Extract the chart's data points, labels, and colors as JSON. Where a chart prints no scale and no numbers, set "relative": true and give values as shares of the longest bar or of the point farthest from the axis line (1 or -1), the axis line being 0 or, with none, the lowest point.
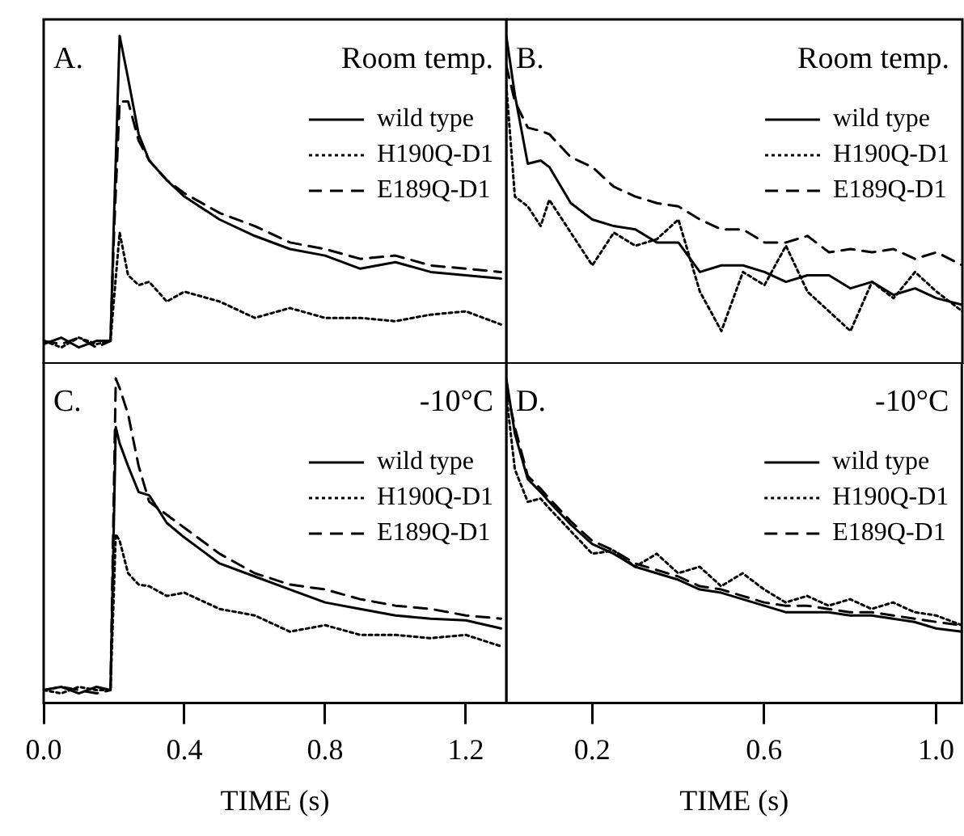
{
  "chart_data": [
    {
      "type": "line",
      "title": "Room temp.",
      "annotations": [
        "A."
      ],
      "relative": true,
      "legend": "top right",
      "marker": "none",
      "tick_labels": false,
      "xlim": [
        0,
        1.315
      ],
      "x": [
        0,
        0.05,
        0.1,
        0.15,
        0.19,
        0.2,
        0.216,
        0.24,
        0.27,
        0.3,
        0.35,
        0.4,
        0.5,
        0.6,
        0.7,
        0.8,
        0.9,
        1.0,
        1.1,
        1.2,
        1.3
      ],
      "series": [
        {
          "name": "wild type",
          "color": "#000000",
          "line_style": "solid",
          "values": [
            0.06,
            0.08,
            0.05,
            0.07,
            0.07,
            0.45,
            1.0,
            0.87,
            0.7,
            0.62,
            0.56,
            0.51,
            0.44,
            0.39,
            0.35,
            0.33,
            0.29,
            0.31,
            0.28,
            0.27,
            0.26
          ]
        },
        {
          "name": "H190Q-D1",
          "color": "#000000",
          "line_style": "dotted",
          "values": [
            0.07,
            0.05,
            0.08,
            0.06,
            0.07,
            0.2,
            0.4,
            0.27,
            0.24,
            0.25,
            0.19,
            0.22,
            0.19,
            0.14,
            0.17,
            0.14,
            0.14,
            0.13,
            0.15,
            0.16,
            0.12
          ]
        },
        {
          "name": "E189Q-D1",
          "color": "#000000",
          "line_style": "dashed",
          "values": [
            0.07,
            0.06,
            0.08,
            0.05,
            0.07,
            0.4,
            0.8,
            0.8,
            0.68,
            0.62,
            0.56,
            0.52,
            0.46,
            0.42,
            0.37,
            0.35,
            0.32,
            0.33,
            0.3,
            0.29,
            0.28
          ]
        }
      ]
    },
    {
      "type": "line",
      "title": "Room temp.",
      "annotations": [
        "B."
      ],
      "relative": true,
      "legend": "top right",
      "marker": "none",
      "tick_labels": false,
      "xlim": [
        0,
        1.06
      ],
      "x": [
        0,
        0.02,
        0.05,
        0.08,
        0.1,
        0.15,
        0.2,
        0.25,
        0.3,
        0.35,
        0.4,
        0.45,
        0.5,
        0.55,
        0.6,
        0.65,
        0.7,
        0.75,
        0.8,
        0.85,
        0.9,
        0.95,
        1.0,
        1.06
      ],
      "series": [
        {
          "name": "wild type",
          "color": "#000000",
          "line_style": "solid",
          "values": [
            1.0,
            0.82,
            0.61,
            0.62,
            0.6,
            0.49,
            0.44,
            0.42,
            0.41,
            0.37,
            0.37,
            0.28,
            0.3,
            0.3,
            0.28,
            0.25,
            0.27,
            0.27,
            0.23,
            0.25,
            0.21,
            0.23,
            0.2,
            0.18
          ]
        },
        {
          "name": "H190Q-D1",
          "color": "#000000",
          "line_style": "dotted",
          "values": [
            0.85,
            0.51,
            0.48,
            0.42,
            0.5,
            0.4,
            0.3,
            0.4,
            0.36,
            0.38,
            0.44,
            0.22,
            0.1,
            0.28,
            0.24,
            0.36,
            0.22,
            0.16,
            0.1,
            0.25,
            0.2,
            0.28,
            0.22,
            0.16
          ]
        },
        {
          "name": "E189Q-D1",
          "color": "#000000",
          "line_style": "dashed",
          "values": [
            0.91,
            0.8,
            0.72,
            0.71,
            0.7,
            0.63,
            0.6,
            0.54,
            0.51,
            0.49,
            0.48,
            0.44,
            0.41,
            0.41,
            0.37,
            0.37,
            0.39,
            0.34,
            0.35,
            0.34,
            0.35,
            0.32,
            0.34,
            0.3
          ]
        }
      ]
    },
    {
      "type": "line",
      "title": "-10°C",
      "annotations": [
        "C."
      ],
      "xlabel": "TIME (s)",
      "relative": true,
      "legend": "top right",
      "marker": "none",
      "tick_labels": "x",
      "xlim": [
        0,
        1.315
      ],
      "xticks": [
        {
          "value": 0,
          "label": "0.0"
        },
        0.4,
        0.8,
        1.2
      ],
      "x": [
        0,
        0.05,
        0.1,
        0.15,
        0.19,
        0.205,
        0.216,
        0.24,
        0.27,
        0.3,
        0.35,
        0.4,
        0.5,
        0.6,
        0.7,
        0.8,
        0.9,
        1.0,
        1.1,
        1.2,
        1.3
      ],
      "series": [
        {
          "name": "wild type",
          "color": "#000000",
          "line_style": "solid",
          "values": [
            0.04,
            0.05,
            0.03,
            0.05,
            0.04,
            0.85,
            0.8,
            0.73,
            0.65,
            0.64,
            0.555,
            0.51,
            0.43,
            0.39,
            0.35,
            0.31,
            0.29,
            0.27,
            0.26,
            0.255,
            0.23
          ]
        },
        {
          "name": "H190Q-D1",
          "color": "#000000",
          "line_style": "dotted",
          "values": [
            0.04,
            0.03,
            0.05,
            0.04,
            0.04,
            0.52,
            0.5,
            0.4,
            0.365,
            0.36,
            0.33,
            0.34,
            0.29,
            0.27,
            0.22,
            0.24,
            0.21,
            0.21,
            0.2,
            0.21,
            0.175
          ]
        },
        {
          "name": "E189Q-D1",
          "color": "#000000",
          "line_style": "dashed",
          "values": [
            0.04,
            0.05,
            0.04,
            0.03,
            0.04,
            1.0,
            0.97,
            0.89,
            0.73,
            0.62,
            0.58,
            0.54,
            0.46,
            0.4,
            0.365,
            0.35,
            0.32,
            0.3,
            0.29,
            0.27,
            0.26
          ]
        }
      ]
    },
    {
      "type": "line",
      "title": "-10°C",
      "annotations": [
        "D."
      ],
      "xlabel": "TIME (s)",
      "relative": true,
      "legend": "top right",
      "marker": "none",
      "tick_labels": "x",
      "xlim": [
        0,
        1.06
      ],
      "xticks": [
        0.2,
        0.6,
        {
          "value": 1,
          "label": "1.0"
        }
      ],
      "x": [
        0,
        0.02,
        0.05,
        0.08,
        0.1,
        0.15,
        0.2,
        0.25,
        0.3,
        0.35,
        0.4,
        0.45,
        0.5,
        0.55,
        0.6,
        0.65,
        0.7,
        0.75,
        0.8,
        0.85,
        0.9,
        0.95,
        1.0,
        1.06
      ],
      "series": [
        {
          "name": "wild type",
          "color": "#000000",
          "line_style": "solid",
          "values": [
            1.0,
            0.83,
            0.69,
            0.65,
            0.62,
            0.55,
            0.49,
            0.46,
            0.42,
            0.4,
            0.38,
            0.35,
            0.34,
            0.32,
            0.3,
            0.28,
            0.28,
            0.28,
            0.27,
            0.27,
            0.26,
            0.25,
            0.23,
            0.22
          ]
        },
        {
          "name": "H190Q-D1",
          "color": "#000000",
          "line_style": "dotted",
          "values": [
            0.95,
            0.72,
            0.62,
            0.63,
            0.6,
            0.53,
            0.46,
            0.47,
            0.42,
            0.46,
            0.4,
            0.42,
            0.36,
            0.4,
            0.35,
            0.31,
            0.33,
            0.3,
            0.32,
            0.29,
            0.31,
            0.28,
            0.27,
            0.24
          ]
        },
        {
          "name": "E189Q-D1",
          "color": "#000000",
          "line_style": "dashed",
          "values": [
            0.97,
            0.85,
            0.7,
            0.66,
            0.63,
            0.56,
            0.5,
            0.47,
            0.43,
            0.41,
            0.39,
            0.36,
            0.35,
            0.33,
            0.31,
            0.3,
            0.3,
            0.29,
            0.28,
            0.28,
            0.27,
            0.26,
            0.25,
            0.24
          ]
        }
      ]
    }
  ]
}
